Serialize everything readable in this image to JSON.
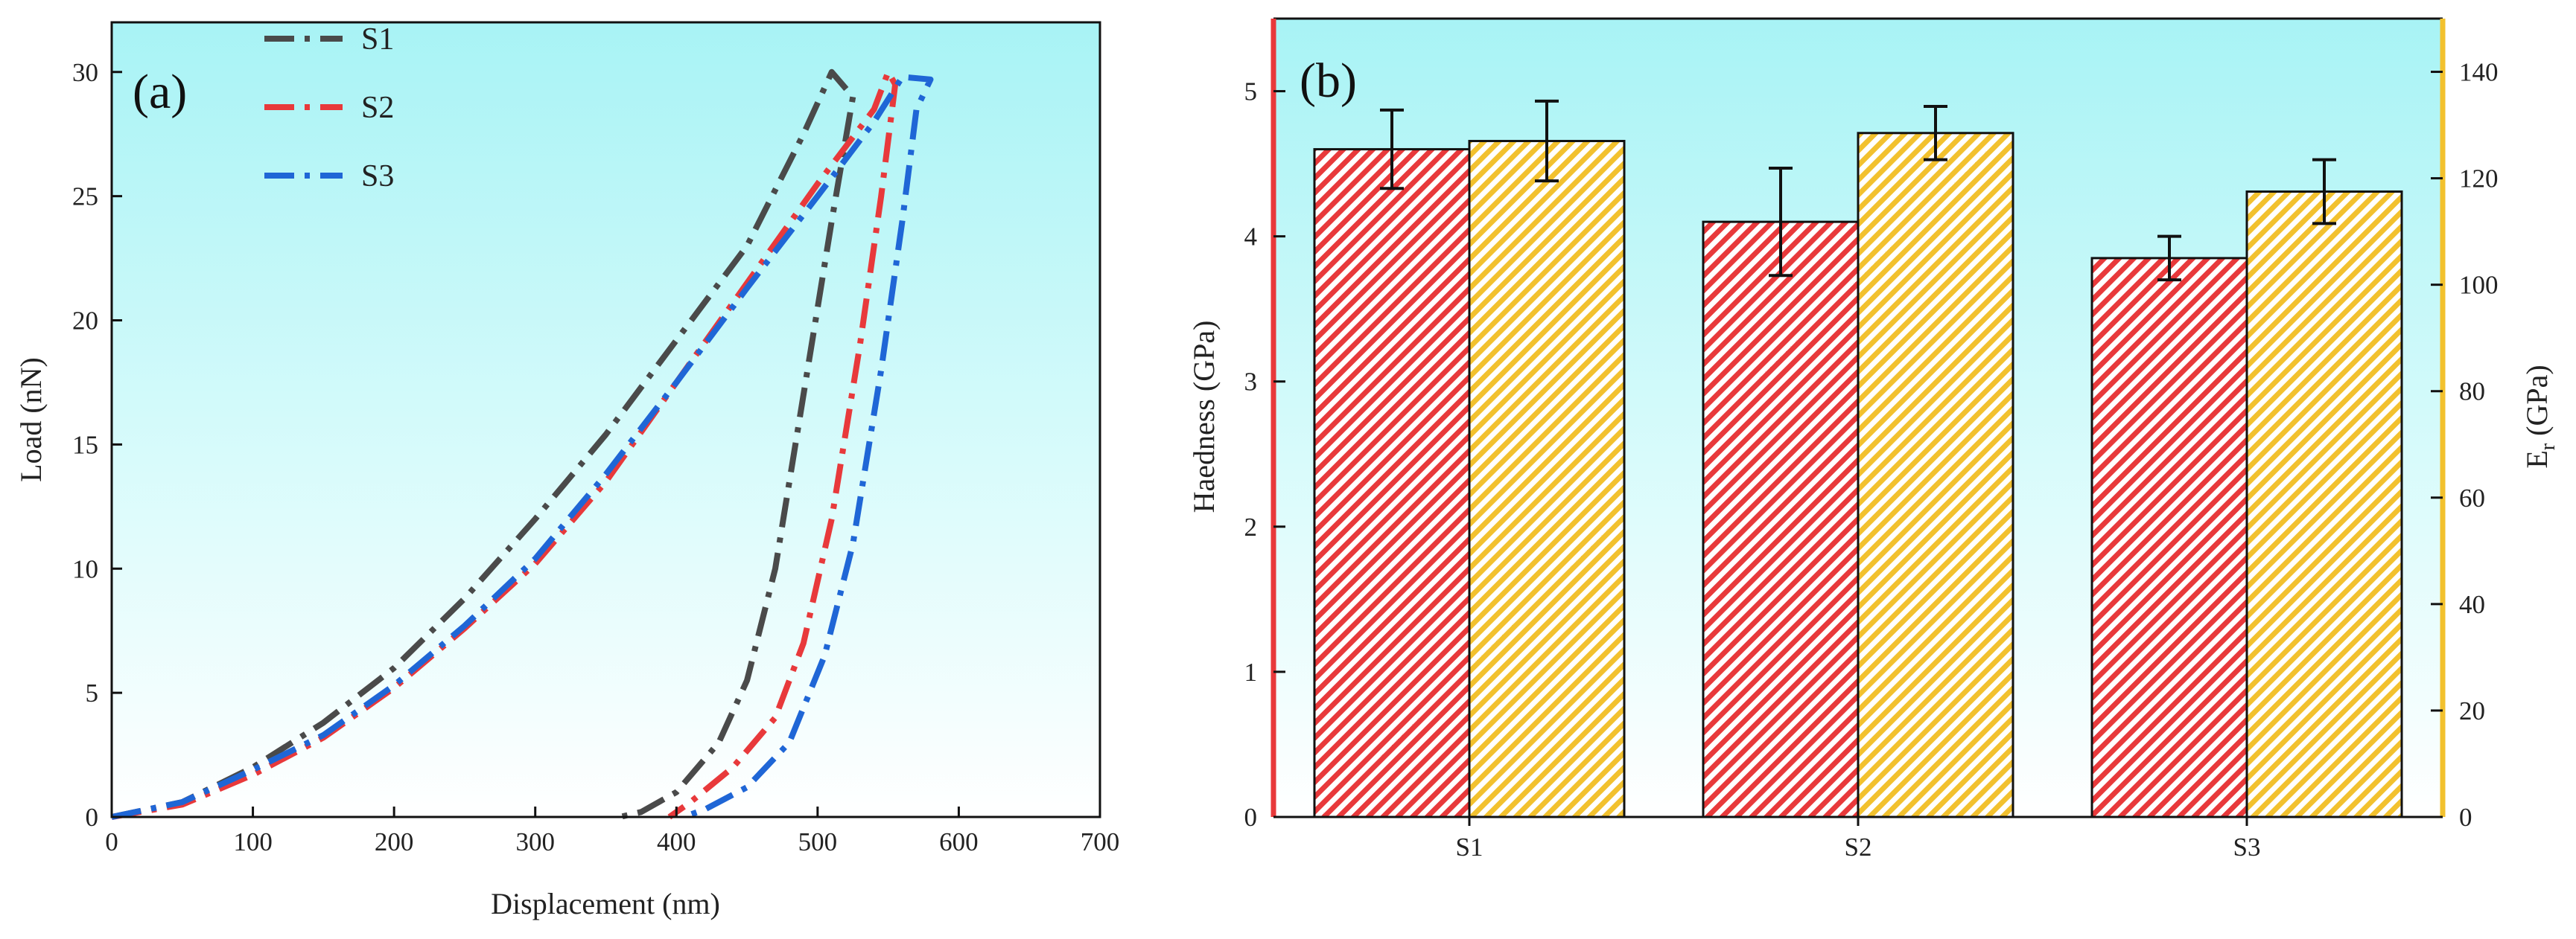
{
  "chart_data": [
    {
      "type": "line",
      "panel_label": "(a)",
      "xlabel": "Displacement (nm)",
      "ylabel": "Load (nN)",
      "xlim": [
        0,
        700
      ],
      "ylim": [
        0,
        32
      ],
      "xticks": [
        0,
        100,
        200,
        300,
        400,
        500,
        600,
        700
      ],
      "yticks": [
        0,
        5,
        10,
        15,
        20,
        25,
        30
      ],
      "legend_position": "top-left",
      "series": [
        {
          "name": "S1",
          "color": "#4a4a4a",
          "loading": [
            [
              0,
              0
            ],
            [
              50,
              0.6
            ],
            [
              100,
              2.0
            ],
            [
              150,
              3.8
            ],
            [
              200,
              6.0
            ],
            [
              250,
              8.8
            ],
            [
              300,
              12.0
            ],
            [
              350,
              15.4
            ],
            [
              400,
              19.2
            ],
            [
              450,
              23.0
            ],
            [
              490,
              27.5
            ],
            [
              510,
              30.0
            ]
          ],
          "unloading": [
            [
              525,
              29.0
            ],
            [
              510,
              24.0
            ],
            [
              490,
              17.0
            ],
            [
              470,
              10.0
            ],
            [
              450,
              5.5
            ],
            [
              430,
              3.0
            ],
            [
              400,
              1.0
            ],
            [
              375,
              0.2
            ],
            [
              360,
              0
            ]
          ]
        },
        {
          "name": "S2",
          "color": "#e8393b",
          "loading": [
            [
              0,
              0
            ],
            [
              50,
              0.5
            ],
            [
              100,
              1.7
            ],
            [
              150,
              3.2
            ],
            [
              200,
              5.2
            ],
            [
              250,
              7.6
            ],
            [
              300,
              10.2
            ],
            [
              350,
              13.5
            ],
            [
              400,
              17.5
            ],
            [
              450,
              21.5
            ],
            [
              500,
              25.5
            ],
            [
              540,
              28.5
            ],
            [
              550,
              30.0
            ]
          ],
          "unloading": [
            [
              555,
              29.5
            ],
            [
              545,
              25.0
            ],
            [
              530,
              19.0
            ],
            [
              510,
              12.0
            ],
            [
              490,
              7.0
            ],
            [
              470,
              4.0
            ],
            [
              440,
              2.0
            ],
            [
              410,
              0.6
            ],
            [
              395,
              0
            ]
          ]
        },
        {
          "name": "S3",
          "color": "#1f66d6",
          "loading": [
            [
              0,
              0
            ],
            [
              50,
              0.6
            ],
            [
              100,
              1.9
            ],
            [
              150,
              3.3
            ],
            [
              200,
              5.3
            ],
            [
              250,
              7.7
            ],
            [
              300,
              10.4
            ],
            [
              350,
              13.8
            ],
            [
              400,
              17.5
            ],
            [
              450,
              21.3
            ],
            [
              500,
              25.0
            ],
            [
              540,
              28.0
            ],
            [
              560,
              29.8
            ],
            [
              580,
              29.7
            ]
          ],
          "unloading": [
            [
              570,
              28.5
            ],
            [
              560,
              24.0
            ],
            [
              545,
              18.0
            ],
            [
              525,
              11.0
            ],
            [
              505,
              6.5
            ],
            [
              480,
              3.0
            ],
            [
              450,
              1.2
            ],
            [
              420,
              0.3
            ],
            [
              405,
              0
            ]
          ]
        }
      ]
    },
    {
      "type": "bar",
      "panel_label": "(b)",
      "categories": [
        "S1",
        "S2",
        "S3"
      ],
      "ylabel": "Haedness (GPa)",
      "ylabel2": "E",
      "ylabel2_sub": "r",
      "ylabel2_unit": " (GPa)",
      "ylim": [
        0,
        5.5
      ],
      "y2lim": [
        0,
        150
      ],
      "yticks": [
        0,
        1,
        2,
        3,
        4,
        5
      ],
      "y2ticks": [
        0,
        20,
        40,
        60,
        80,
        100,
        120,
        140
      ],
      "series": [
        {
          "name": "Hardness",
          "axis": "left",
          "color": "#e8393b",
          "values": [
            4.6,
            4.1,
            3.85
          ],
          "errors": [
            0.27,
            0.37,
            0.15
          ]
        },
        {
          "name": "Er",
          "axis": "right",
          "color": "#f2c12e",
          "values": [
            127,
            128.5,
            117.5
          ],
          "errors": [
            7.5,
            5.0,
            6.0
          ]
        }
      ]
    }
  ],
  "colors": {
    "plot_background": "#b8f6f7",
    "left_axis_b": "#e8393b",
    "right_axis_b": "#f2c12e"
  }
}
